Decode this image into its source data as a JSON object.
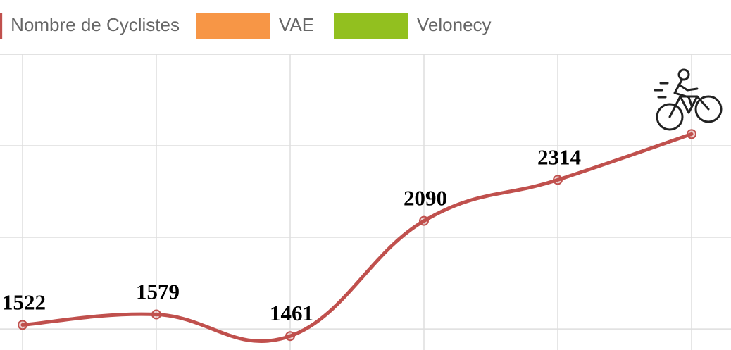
{
  "chart_data": {
    "type": "line",
    "categories": [
      null,
      null,
      null,
      null,
      null,
      null
    ],
    "series": [
      {
        "name": "Nombre de Cyclistes",
        "color": "#c0504d",
        "values": [
          1522,
          1579,
          1461,
          2090,
          2314,
          2564
        ],
        "value_labels": [
          "1522",
          "1579",
          "1461",
          "2090",
          "2314",
          null
        ]
      },
      {
        "name": "VAE",
        "color": "#f79646",
        "values": [
          null,
          null,
          null,
          null,
          null,
          null
        ]
      },
      {
        "name": "Velonecy",
        "color": "#92c01f",
        "values": [
          null,
          null,
          null,
          null,
          null,
          null
        ]
      }
    ],
    "ylim": [
      1385,
      3000
    ],
    "yticks": [
      1500,
      2000,
      2500,
      3000
    ],
    "grid": true
  }
}
